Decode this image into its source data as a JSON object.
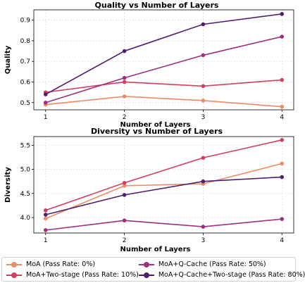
{
  "chart_data": [
    {
      "type": "line",
      "title": "Quality vs Number of Layers",
      "xlabel": "Number of Layers",
      "ylabel": "Quality",
      "x": [
        1,
        2,
        3,
        4
      ],
      "xlim": [
        0.85,
        4.15
      ],
      "ylim": [
        0.465,
        0.95
      ],
      "yticks": [
        0.5,
        0.6,
        0.7,
        0.8,
        0.9
      ],
      "grid": true,
      "series": [
        {
          "name": "MoA (Pass Rate: 0%)",
          "color": "#ec8b66",
          "values": [
            0.49,
            0.53,
            0.51,
            0.48
          ]
        },
        {
          "name": "MoA+Two-stage (Pass Rate: 10%)",
          "color": "#d33f5e",
          "values": [
            0.55,
            0.6,
            0.58,
            0.61
          ]
        },
        {
          "name": "MoA+Q-Cache (Pass Rate: 50%)",
          "color": "#9e2f7f",
          "values": [
            0.5,
            0.62,
            0.73,
            0.82
          ]
        },
        {
          "name": "MoA+Q-Cache+Two-stage (Pass Rate: 80%)",
          "color": "#4f1e6e",
          "values": [
            0.54,
            0.75,
            0.88,
            0.93
          ]
        }
      ]
    },
    {
      "type": "line",
      "title": "Diversity vs Number of Layers",
      "xlabel": "Number of Layers",
      "ylabel": "Diversity",
      "x": [
        1,
        2,
        3,
        4
      ],
      "xlim": [
        0.85,
        4.15
      ],
      "ylim": [
        3.68,
        5.68
      ],
      "yticks": [
        4.0,
        4.5,
        5.0,
        5.5
      ],
      "grid": true,
      "series": [
        {
          "name": "MoA (Pass Rate: 0%)",
          "color": "#ec8b66",
          "values": [
            3.98,
            4.66,
            4.7,
            5.12
          ]
        },
        {
          "name": "MoA+Two-stage (Pass Rate: 10%)",
          "color": "#d33f5e",
          "values": [
            4.15,
            4.72,
            5.24,
            5.61
          ]
        },
        {
          "name": "MoA+Q-Cache (Pass Rate: 50%)",
          "color": "#9e2f7f",
          "values": [
            3.74,
            3.94,
            3.81,
            3.97
          ]
        },
        {
          "name": "MoA+Q-Cache+Two-stage (Pass Rate: 80%)",
          "color": "#4f1e6e",
          "values": [
            4.06,
            4.47,
            4.75,
            4.84
          ]
        }
      ]
    }
  ],
  "legend": {
    "placement": "bottom",
    "items": [
      {
        "label": "MoA (Pass Rate: 0%)",
        "color": "#ec8b66"
      },
      {
        "label": "MoA+Q-Cache (Pass Rate: 50%)",
        "color": "#9e2f7f"
      },
      {
        "label": "MoA+Two-stage (Pass Rate: 10%)",
        "color": "#d33f5e"
      },
      {
        "label": "MoA+Q-Cache+Two-stage (Pass Rate: 80%)",
        "color": "#4f1e6e"
      }
    ]
  }
}
